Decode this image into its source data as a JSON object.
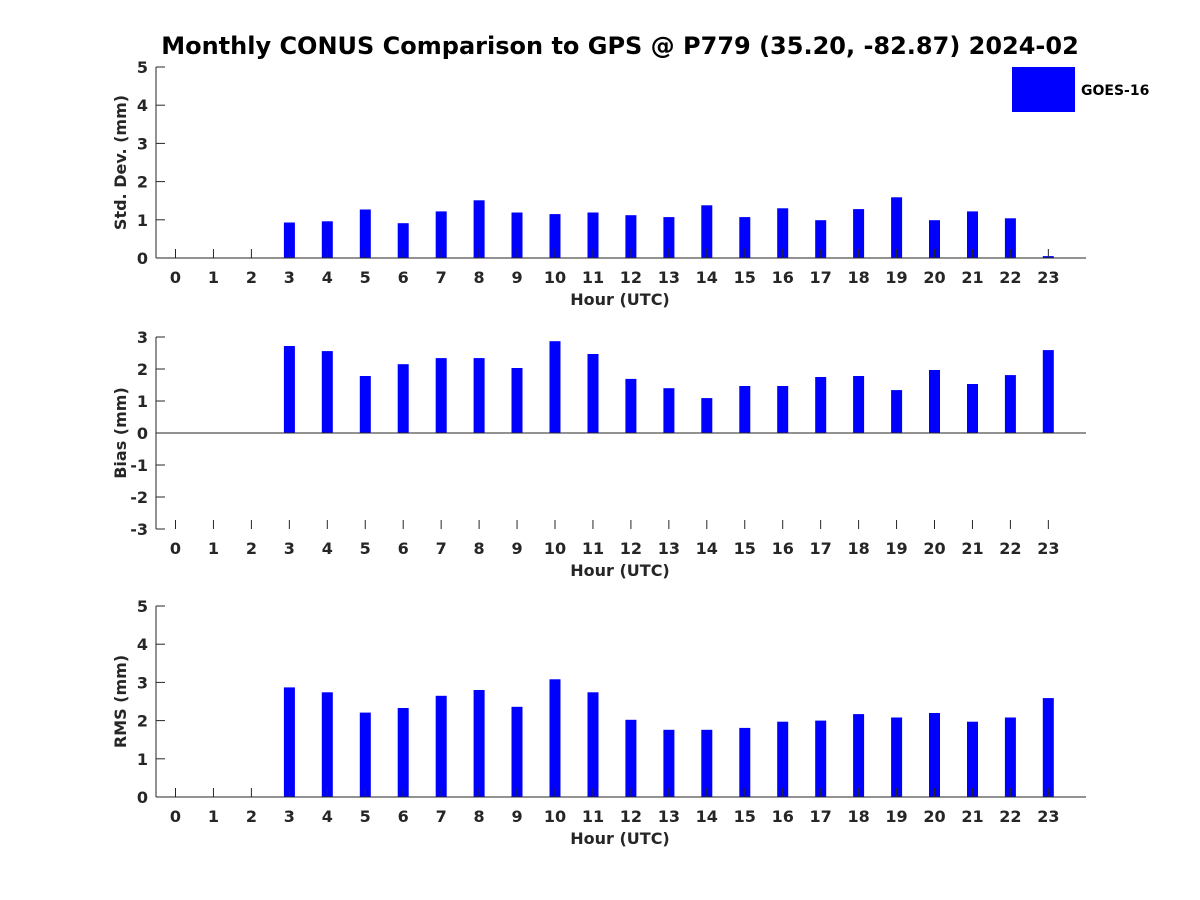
{
  "title": "Monthly CONUS Comparison to GPS @ P779 (35.20, -82.87) 2024-02",
  "legend": {
    "label": "GOES-16",
    "color": "#0000ff",
    "placement": "top-right"
  },
  "chart_data": [
    {
      "type": "bar",
      "xlabel": "Hour (UTC)",
      "ylabel": "Std. Dev. (mm)",
      "ylim": [
        0,
        5
      ],
      "yticks": [
        0,
        1,
        2,
        3,
        4,
        5
      ],
      "categories": [
        "0",
        "1",
        "2",
        "3",
        "4",
        "5",
        "6",
        "7",
        "8",
        "9",
        "10",
        "11",
        "12",
        "13",
        "14",
        "15",
        "16",
        "17",
        "18",
        "19",
        "20",
        "21",
        "22",
        "23"
      ],
      "series": [
        {
          "name": "GOES-16",
          "values": [
            null,
            null,
            null,
            0.93,
            0.96,
            1.27,
            0.91,
            1.22,
            1.51,
            1.19,
            1.15,
            1.19,
            1.12,
            1.07,
            1.38,
            1.07,
            1.3,
            0.99,
            1.28,
            1.59,
            0.99,
            1.22,
            1.04,
            0.05
          ]
        }
      ]
    },
    {
      "type": "bar",
      "xlabel": "Hour (UTC)",
      "ylabel": "Bias (mm)",
      "ylim": [
        -3,
        3
      ],
      "yticks": [
        -3,
        -2,
        -1,
        0,
        1,
        2,
        3
      ],
      "categories": [
        "0",
        "1",
        "2",
        "3",
        "4",
        "5",
        "6",
        "7",
        "8",
        "9",
        "10",
        "11",
        "12",
        "13",
        "14",
        "15",
        "16",
        "17",
        "18",
        "19",
        "20",
        "21",
        "22",
        "23"
      ],
      "series": [
        {
          "name": "GOES-16",
          "values": [
            null,
            null,
            null,
            2.72,
            2.56,
            1.78,
            2.15,
            2.34,
            2.34,
            2.03,
            2.87,
            2.47,
            1.69,
            1.4,
            1.09,
            1.47,
            1.47,
            1.75,
            1.78,
            1.34,
            1.97,
            1.53,
            1.81,
            2.59
          ]
        }
      ]
    },
    {
      "type": "bar",
      "xlabel": "Hour (UTC)",
      "ylabel": "RMS (mm)",
      "ylim": [
        0,
        5
      ],
      "yticks": [
        0,
        1,
        2,
        3,
        4,
        5
      ],
      "categories": [
        "0",
        "1",
        "2",
        "3",
        "4",
        "5",
        "6",
        "7",
        "8",
        "9",
        "10",
        "11",
        "12",
        "13",
        "14",
        "15",
        "16",
        "17",
        "18",
        "19",
        "20",
        "21",
        "22",
        "23"
      ],
      "series": [
        {
          "name": "GOES-16",
          "values": [
            null,
            null,
            null,
            2.87,
            2.74,
            2.21,
            2.33,
            2.65,
            2.8,
            2.36,
            3.08,
            2.74,
            2.02,
            1.76,
            1.76,
            1.81,
            1.97,
            2.0,
            2.17,
            2.08,
            2.2,
            1.97,
            2.08,
            2.59
          ]
        }
      ]
    }
  ]
}
